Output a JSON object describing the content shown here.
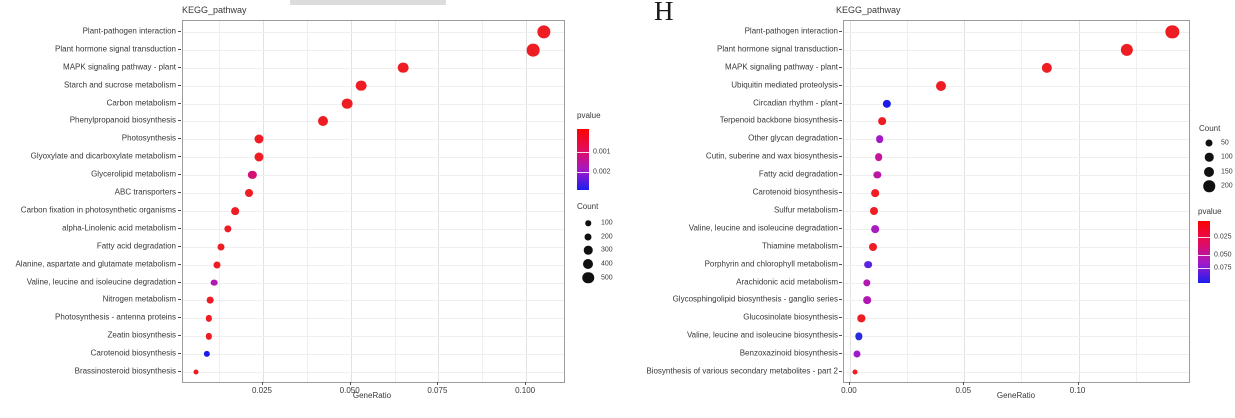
{
  "figure": {
    "background": "#ffffff",
    "artifact_bar_color": "#dcdcdc",
    "text_color": "#383838",
    "panel_border_color": "#9c9c9c",
    "gridline_major_color": "#e2e2e2",
    "gridline_minor_color": "#efefef"
  },
  "chart_data": [
    {
      "type": "scatter",
      "panel_label": "",
      "title": "KEGG_pathway",
      "xlabel": "GeneRatio",
      "ylabel": "",
      "xlim": [
        0.0022,
        0.1108
      ],
      "x_major_ticks": [
        0.025,
        0.05,
        0.075,
        0.1
      ],
      "x_tick_labels": [
        "0.025",
        "0.050",
        "0.075",
        "0.100"
      ],
      "x_minor_ticks": [
        0.0125,
        0.0375,
        0.0625,
        0.0875
      ],
      "grid": true,
      "legend_position": "right",
      "color_scale": {
        "title": "pvalue",
        "stops": [
          {
            "c": "#fb0400",
            "p": 0
          },
          {
            "c": "#e30b5e",
            "p": 0.35
          },
          {
            "c": "#a119c9",
            "p": 0.68
          },
          {
            "c": "#1c1cf0",
            "p": 1
          }
        ],
        "ticks": [
          {
            "label": "0.001",
            "pos": 0.38
          },
          {
            "label": "0.002",
            "pos": 0.7
          }
        ]
      },
      "size_scale": {
        "title": "Count",
        "items": [
          {
            "label": "100",
            "d": 5.5
          },
          {
            "label": "200",
            "d": 7
          },
          {
            "label": "300",
            "d": 8.5
          },
          {
            "label": "400",
            "d": 10
          },
          {
            "label": "500",
            "d": 11.5
          }
        ]
      },
      "points": [
        {
          "pathway": "Plant-pathogen interaction",
          "gene_ratio": 0.105,
          "count": 520,
          "pvalue": 0.0003,
          "color": "#ee1c23",
          "d": 13.3
        },
        {
          "pathway": "Plant hormone signal transduction",
          "gene_ratio": 0.102,
          "count": 480,
          "pvalue": 0.0003,
          "color": "#ee1c23",
          "d": 12.7
        },
        {
          "pathway": "MAPK signaling pathway - plant",
          "gene_ratio": 0.065,
          "count": 310,
          "pvalue": 0.0003,
          "color": "#ee1c23",
          "d": 10.7
        },
        {
          "pathway": "Starch and sucrose metabolism",
          "gene_ratio": 0.053,
          "count": 300,
          "pvalue": 0.0003,
          "color": "#ee1c23",
          "d": 10.7
        },
        {
          "pathway": "Carbon metabolism",
          "gene_ratio": 0.049,
          "count": 295,
          "pvalue": 0.0003,
          "color": "#ee1c23",
          "d": 10.7
        },
        {
          "pathway": "Phenylpropanoid biosynthesis",
          "gene_ratio": 0.042,
          "count": 260,
          "pvalue": 0.0003,
          "color": "#ee1c23",
          "d": 10
        },
        {
          "pathway": "Photosynthesis",
          "gene_ratio": 0.024,
          "count": 190,
          "pvalue": 0.0003,
          "color": "#ee1c23",
          "d": 9
        },
        {
          "pathway": "Glyoxylate and dicarboxylate metabolism",
          "gene_ratio": 0.024,
          "count": 185,
          "pvalue": 0.0003,
          "color": "#ee1c23",
          "d": 9
        },
        {
          "pathway": "Glycerolipid metabolism",
          "gene_ratio": 0.022,
          "count": 160,
          "pvalue": 0.0009,
          "color": "#d40f76",
          "d": 8.3
        },
        {
          "pathway": "ABC transporters",
          "gene_ratio": 0.021,
          "count": 150,
          "pvalue": 0.0003,
          "color": "#ee1c23",
          "d": 8
        },
        {
          "pathway": "Carbon fixation in photosynthetic organisms",
          "gene_ratio": 0.017,
          "count": 140,
          "pvalue": 0.0003,
          "color": "#ee1c23",
          "d": 7.7
        },
        {
          "pathway": "alpha-Linolenic acid metabolism",
          "gene_ratio": 0.015,
          "count": 125,
          "pvalue": 0.0003,
          "color": "#ee1c23",
          "d": 7.3
        },
        {
          "pathway": "Fatty acid degradation",
          "gene_ratio": 0.013,
          "count": 115,
          "pvalue": 0.0003,
          "color": "#ee1c23",
          "d": 7
        },
        {
          "pathway": "Alanine, aspartate and glutamate metabolism",
          "gene_ratio": 0.012,
          "count": 110,
          "pvalue": 0.0003,
          "color": "#ee1c23",
          "d": 7
        },
        {
          "pathway": "Valine, leucine and isoleucine degradation",
          "gene_ratio": 0.011,
          "count": 100,
          "pvalue": 0.0014,
          "color": "#b118b1",
          "d": 6.7
        },
        {
          "pathway": "Nitrogen metabolism",
          "gene_ratio": 0.01,
          "count": 100,
          "pvalue": 0.0003,
          "color": "#ee1c23",
          "d": 6.7
        },
        {
          "pathway": "Photosynthesis - antenna proteins",
          "gene_ratio": 0.0095,
          "count": 90,
          "pvalue": 0.0003,
          "color": "#ee1c23",
          "d": 6.3
        },
        {
          "pathway": "Zeatin biosynthesis",
          "gene_ratio": 0.0095,
          "count": 90,
          "pvalue": 0.0003,
          "color": "#ee1c23",
          "d": 6.3
        },
        {
          "pathway": "Carotenoid biosynthesis",
          "gene_ratio": 0.009,
          "count": 80,
          "pvalue": 0.0024,
          "color": "#1c1ce8",
          "d": 6.3
        },
        {
          "pathway": "Brassinosteroid biosynthesis",
          "gene_ratio": 0.006,
          "count": 55,
          "pvalue": 0.0003,
          "color": "#ee1c23",
          "d": 5
        }
      ]
    },
    {
      "type": "scatter",
      "panel_label": "H",
      "title": "KEGG_pathway",
      "xlabel": "GeneRatio",
      "ylabel": "",
      "xlim": [
        -0.0026,
        0.1483
      ],
      "x_major_ticks": [
        0,
        0.05,
        0.1
      ],
      "x_tick_labels": [
        "0.00",
        "0.05",
        "0.10"
      ],
      "x_minor_ticks": [
        0.025,
        0.075,
        0.125
      ],
      "grid": true,
      "legend_position": "right",
      "color_scale": {
        "title": "pvalue",
        "stops": [
          {
            "c": "#fb0400",
            "p": 0
          },
          {
            "c": "#e30b5e",
            "p": 0.35
          },
          {
            "c": "#a119c9",
            "p": 0.68
          },
          {
            "c": "#1c1cf0",
            "p": 1
          }
        ],
        "ticks": [
          {
            "label": "0.025",
            "pos": 0.26
          },
          {
            "label": "0.050",
            "pos": 0.55
          },
          {
            "label": "0.075",
            "pos": 0.76
          }
        ]
      },
      "size_scale": {
        "title": "Count",
        "items": [
          {
            "label": "50",
            "d": 7
          },
          {
            "label": "100",
            "d": 8.5
          },
          {
            "label": "150",
            "d": 10
          },
          {
            "label": "200",
            "d": 11.5
          }
        ]
      },
      "points": [
        {
          "pathway": "Plant-pathogen interaction",
          "gene_ratio": 0.141,
          "count": 190,
          "pvalue": 0.005,
          "color": "#ee1c23",
          "d": 13.3
        },
        {
          "pathway": "Plant hormone signal transduction",
          "gene_ratio": 0.121,
          "count": 160,
          "pvalue": 0.005,
          "color": "#ee1c23",
          "d": 12.3
        },
        {
          "pathway": "MAPK signaling pathway - plant",
          "gene_ratio": 0.086,
          "count": 110,
          "pvalue": 0.005,
          "color": "#ee1c23",
          "d": 10.3
        },
        {
          "pathway": "Ubiquitin mediated proteolysis",
          "gene_ratio": 0.04,
          "count": 105,
          "pvalue": 0.005,
          "color": "#ee1c23",
          "d": 10
        },
        {
          "pathway": "Circadian rhythm - plant",
          "gene_ratio": 0.016,
          "count": 45,
          "pvalue": 0.08,
          "color": "#1c1ce8",
          "d": 8.3
        },
        {
          "pathway": "Terpenoid backbone biosynthesis",
          "gene_ratio": 0.014,
          "count": 38,
          "pvalue": 0.01,
          "color": "#ee1c23",
          "d": 7.7
        },
        {
          "pathway": "Other glycan degradation",
          "gene_ratio": 0.013,
          "count": 38,
          "pvalue": 0.055,
          "color": "#a21ac8",
          "d": 7.7
        },
        {
          "pathway": "Cutin, suberine and wax biosynthesis",
          "gene_ratio": 0.0125,
          "count": 38,
          "pvalue": 0.045,
          "color": "#c6159b",
          "d": 7.7
        },
        {
          "pathway": "Fatty acid degradation",
          "gene_ratio": 0.012,
          "count": 35,
          "pvalue": 0.05,
          "color": "#bb16a3",
          "d": 7.3
        },
        {
          "pathway": "Carotenoid biosynthesis",
          "gene_ratio": 0.011,
          "count": 38,
          "pvalue": 0.01,
          "color": "#ee1c23",
          "d": 7.7
        },
        {
          "pathway": "Sulfur metabolism",
          "gene_ratio": 0.0105,
          "count": 42,
          "pvalue": 0.01,
          "color": "#ee1c23",
          "d": 8
        },
        {
          "pathway": "Valine, leucine and isoleucine degradation",
          "gene_ratio": 0.011,
          "count": 38,
          "pvalue": 0.055,
          "color": "#a81cc0",
          "d": 7.7
        },
        {
          "pathway": "Thiamine metabolism",
          "gene_ratio": 0.01,
          "count": 42,
          "pvalue": 0.01,
          "color": "#ee1c23",
          "d": 8
        },
        {
          "pathway": "Porphyrin and chlorophyll metabolism",
          "gene_ratio": 0.008,
          "count": 38,
          "pvalue": 0.07,
          "color": "#5a24e0",
          "d": 7.7
        },
        {
          "pathway": "Arachidonic acid metabolism",
          "gene_ratio": 0.0075,
          "count": 35,
          "pvalue": 0.05,
          "color": "#b118b1",
          "d": 7.3
        },
        {
          "pathway": "Glycosphingolipid biosynthesis - ganglio series",
          "gene_ratio": 0.0075,
          "count": 38,
          "pvalue": 0.05,
          "color": "#b118b1",
          "d": 7.7
        },
        {
          "pathway": "Glucosinolate biosynthesis",
          "gene_ratio": 0.005,
          "count": 35,
          "pvalue": 0.01,
          "color": "#ee1c23",
          "d": 7.3
        },
        {
          "pathway": "Valine, leucine and isoleucine biosynthesis",
          "gene_ratio": 0.004,
          "count": 35,
          "pvalue": 0.08,
          "color": "#2a2ae0",
          "d": 7.3
        },
        {
          "pathway": "Benzoxazinoid biosynthesis",
          "gene_ratio": 0.003,
          "count": 32,
          "pvalue": 0.055,
          "color": "#9e1bcb",
          "d": 7
        },
        {
          "pathway": "Biosynthesis of various secondary metabolites - part 2",
          "gene_ratio": 0.002,
          "count": 15,
          "pvalue": 0.01,
          "color": "#ee1c23",
          "d": 5
        }
      ]
    }
  ]
}
